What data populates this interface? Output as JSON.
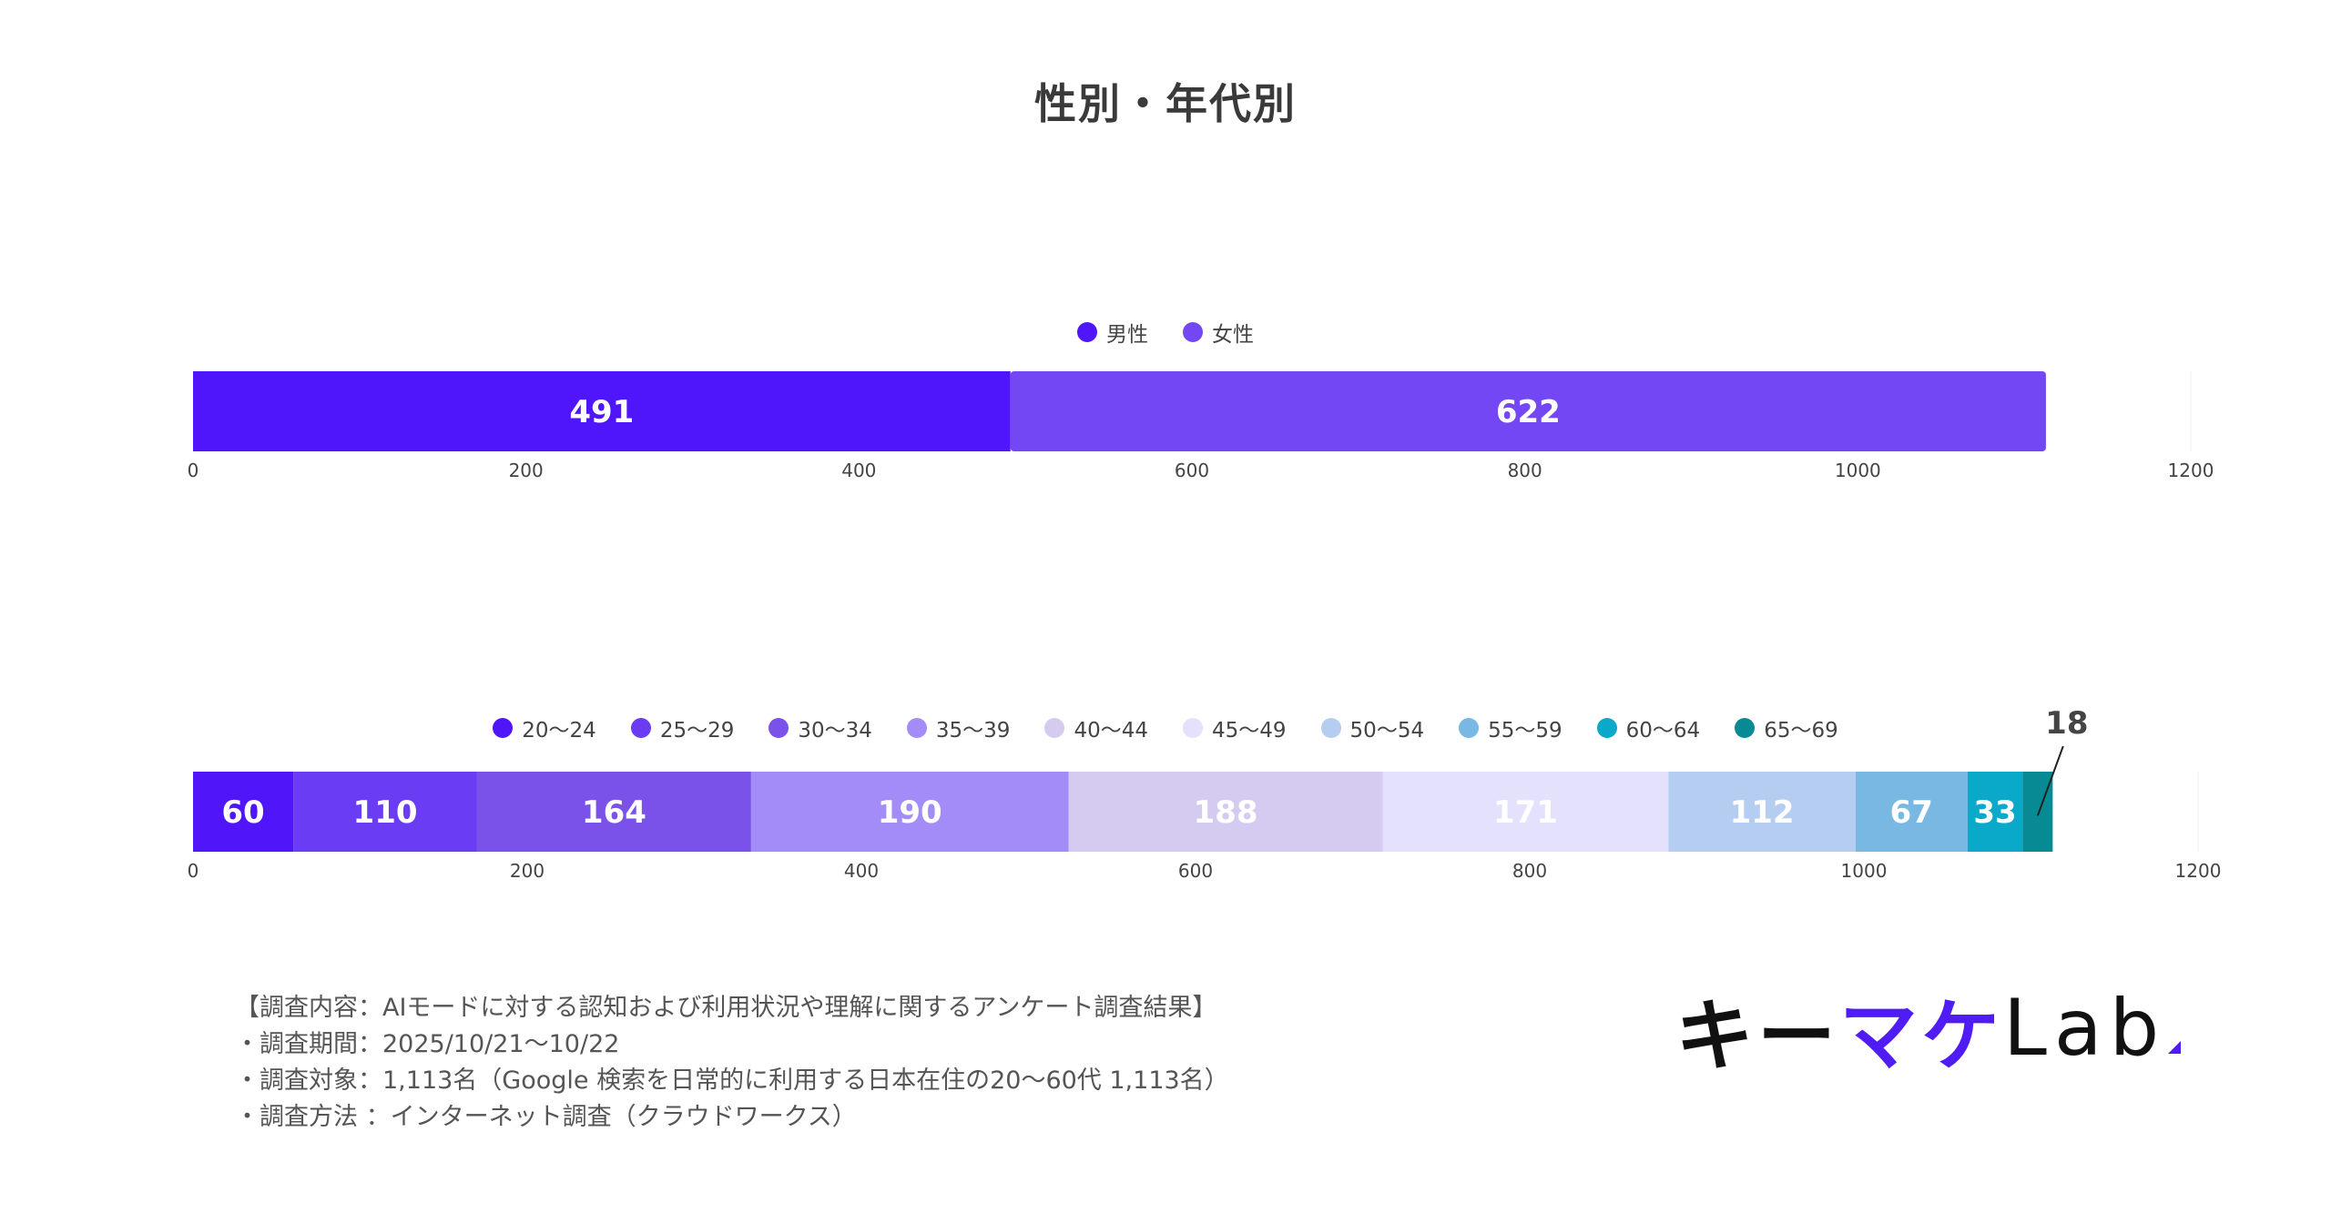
{
  "page": {
    "title": "性別・年代別"
  },
  "chart_data": [
    {
      "type": "bar",
      "orientation": "horizontal-stacked",
      "categories": [
        ""
      ],
      "series": [
        {
          "name": "男性",
          "values": [
            491
          ],
          "color": "#4f16fb"
        },
        {
          "name": "女性",
          "values": [
            622
          ],
          "color": "#7447f5"
        }
      ],
      "xlim": [
        0,
        1200
      ],
      "xticks": [
        0,
        200,
        400,
        600,
        800,
        1000,
        1200
      ],
      "legend": "top-center",
      "grid": false
    },
    {
      "type": "bar",
      "orientation": "horizontal-stacked",
      "categories": [
        ""
      ],
      "series": [
        {
          "name": "20〜24",
          "values": [
            60
          ],
          "color": "#5016f9"
        },
        {
          "name": "25〜29",
          "values": [
            110
          ],
          "color": "#6a3cf3"
        },
        {
          "name": "30〜34",
          "values": [
            164
          ],
          "color": "#7a52ea"
        },
        {
          "name": "35〜39",
          "values": [
            190
          ],
          "color": "#a38cf8"
        },
        {
          "name": "40〜44",
          "values": [
            188
          ],
          "color": "#d5cbf1"
        },
        {
          "name": "45〜49",
          "values": [
            171
          ],
          "color": "#e3e1fb"
        },
        {
          "name": "50〜54",
          "values": [
            112
          ],
          "color": "#b6cdf2"
        },
        {
          "name": "55〜59",
          "values": [
            67
          ],
          "color": "#78b8e3"
        },
        {
          "name": "60〜64",
          "values": [
            33
          ],
          "color": "#0aa8c9"
        },
        {
          "name": "65〜69",
          "values": [
            18
          ],
          "color": "#078a93"
        }
      ],
      "xlim": [
        0,
        1200
      ],
      "xticks": [
        0,
        200,
        400,
        600,
        800,
        1000,
        1200
      ],
      "legend": "top-center",
      "grid": false
    }
  ],
  "survey": {
    "lines": [
      "【調査内容：AIモードに対する認知および利用状況や理解に関するアンケート調査結果】",
      "・調査期間：2025/10/21〜10/22",
      "・調査対象：1,113名（Google 検索を日常的に利用する日本在住の20〜60代 1,113名）",
      "・調査方法 ：インターネット調査（クラウドワークス）"
    ]
  },
  "logo": {
    "part1": "キー",
    "part2": "マケ",
    "part3": "Lab"
  }
}
